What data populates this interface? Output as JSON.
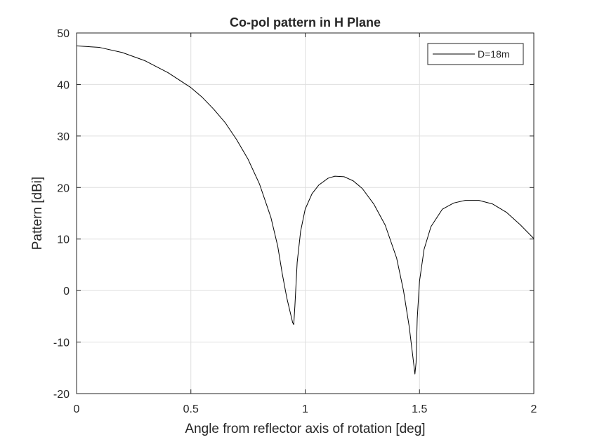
{
  "chart_data": {
    "type": "line",
    "title": "Co-pol pattern in H Plane",
    "xlabel": "Angle from reflector axis of rotation [deg]",
    "ylabel": "Pattern [dBi]",
    "xlim": [
      0,
      2
    ],
    "ylim": [
      -20,
      50
    ],
    "xticks": [
      0,
      0.5,
      1,
      1.5,
      2
    ],
    "xtick_labels": [
      "0",
      "0.5",
      "1",
      "1.5",
      "2"
    ],
    "yticks": [
      -20,
      -10,
      0,
      10,
      20,
      30,
      40,
      50
    ],
    "ytick_labels": [
      "-20",
      "-10",
      "0",
      "10",
      "20",
      "30",
      "40",
      "50"
    ],
    "grid": true,
    "legend_position": "top-right",
    "series": [
      {
        "name": "D=18m",
        "color": "#000000",
        "x": [
          0,
          0.1,
          0.2,
          0.3,
          0.4,
          0.5,
          0.55,
          0.6,
          0.65,
          0.7,
          0.75,
          0.8,
          0.85,
          0.88,
          0.9,
          0.92,
          0.935,
          0.945,
          0.95,
          0.955,
          0.965,
          0.98,
          1.0,
          1.03,
          1.06,
          1.1,
          1.13,
          1.17,
          1.21,
          1.25,
          1.3,
          1.35,
          1.4,
          1.43,
          1.455,
          1.47,
          1.48,
          1.485,
          1.49,
          1.5,
          1.52,
          1.55,
          1.6,
          1.65,
          1.7,
          1.76,
          1.82,
          1.88,
          1.94,
          2.0
        ],
        "values": [
          47.5,
          47.2,
          46.2,
          44.6,
          42.3,
          39.4,
          37.5,
          35.2,
          32.6,
          29.3,
          25.5,
          20.7,
          14.2,
          8.6,
          3.2,
          -1.5,
          -4.3,
          -6.2,
          -6.6,
          -3.0,
          5.5,
          11.5,
          15.8,
          18.8,
          20.5,
          21.8,
          22.2,
          22.1,
          21.3,
          19.8,
          16.8,
          12.7,
          6.3,
          0.0,
          -7.0,
          -12.5,
          -16.2,
          -14.0,
          -5.5,
          1.8,
          8.0,
          12.4,
          15.8,
          17.0,
          17.5,
          17.5,
          16.8,
          15.2,
          12.8,
          10.1
        ]
      }
    ]
  }
}
